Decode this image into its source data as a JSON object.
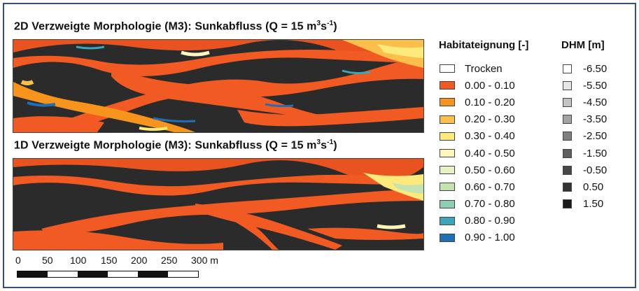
{
  "panels": [
    {
      "title_prefix": "2D Verzweigte Morphologie (M3): Sunkabfluss (Q = 15 m",
      "title_sup1": "3",
      "title_mid": "s",
      "title_sup2": "-1",
      "title_suffix": ")"
    },
    {
      "title_prefix": "1D Verzweigte Morphologie (M3): Sunkabfluss (Q = 15 m",
      "title_sup1": "3",
      "title_mid": "s",
      "title_sup2": "-1",
      "title_suffix": ")"
    }
  ],
  "legend_habitat": {
    "title": "Habitateignung [-]",
    "items": [
      {
        "label": "Trocken",
        "color": "#ffffff"
      },
      {
        "label": "0.00 - 0.10",
        "color": "#f15a22"
      },
      {
        "label": "0.10 - 0.20",
        "color": "#f7941d"
      },
      {
        "label": "0.20 - 0.30",
        "color": "#fbc04c"
      },
      {
        "label": "0.30 - 0.40",
        "color": "#fde97c"
      },
      {
        "label": "0.40 - 0.50",
        "color": "#fdf8b9"
      },
      {
        "label": "0.50 - 0.60",
        "color": "#e6f2c6"
      },
      {
        "label": "0.60 - 0.70",
        "color": "#c4e3b0"
      },
      {
        "label": "0.70 - 0.80",
        "color": "#8dcfb2"
      },
      {
        "label": "0.80 - 0.90",
        "color": "#3aa6b9"
      },
      {
        "label": "0.90 - 1.00",
        "color": "#1f6fb8"
      }
    ]
  },
  "legend_dhm": {
    "title": "DHM [m]",
    "items": [
      {
        "label": "-6.50",
        "color": "#ffffff"
      },
      {
        "label": "-5.50",
        "color": "#e6e6e6"
      },
      {
        "label": "-4.50",
        "color": "#c4c4c4"
      },
      {
        "label": "-3.50",
        "color": "#a3a3a3"
      },
      {
        "label": "-2.50",
        "color": "#7f7f7f"
      },
      {
        "label": "-1.50",
        "color": "#5f5f5f"
      },
      {
        "label": "-0.50",
        "color": "#474747"
      },
      {
        "label": "0.50",
        "color": "#333333"
      },
      {
        "label": "1.50",
        "color": "#1a1a1a"
      }
    ]
  },
  "scale_bar": {
    "labels": [
      "0",
      "50",
      "100",
      "150",
      "200",
      "250",
      "300 m"
    ]
  }
}
